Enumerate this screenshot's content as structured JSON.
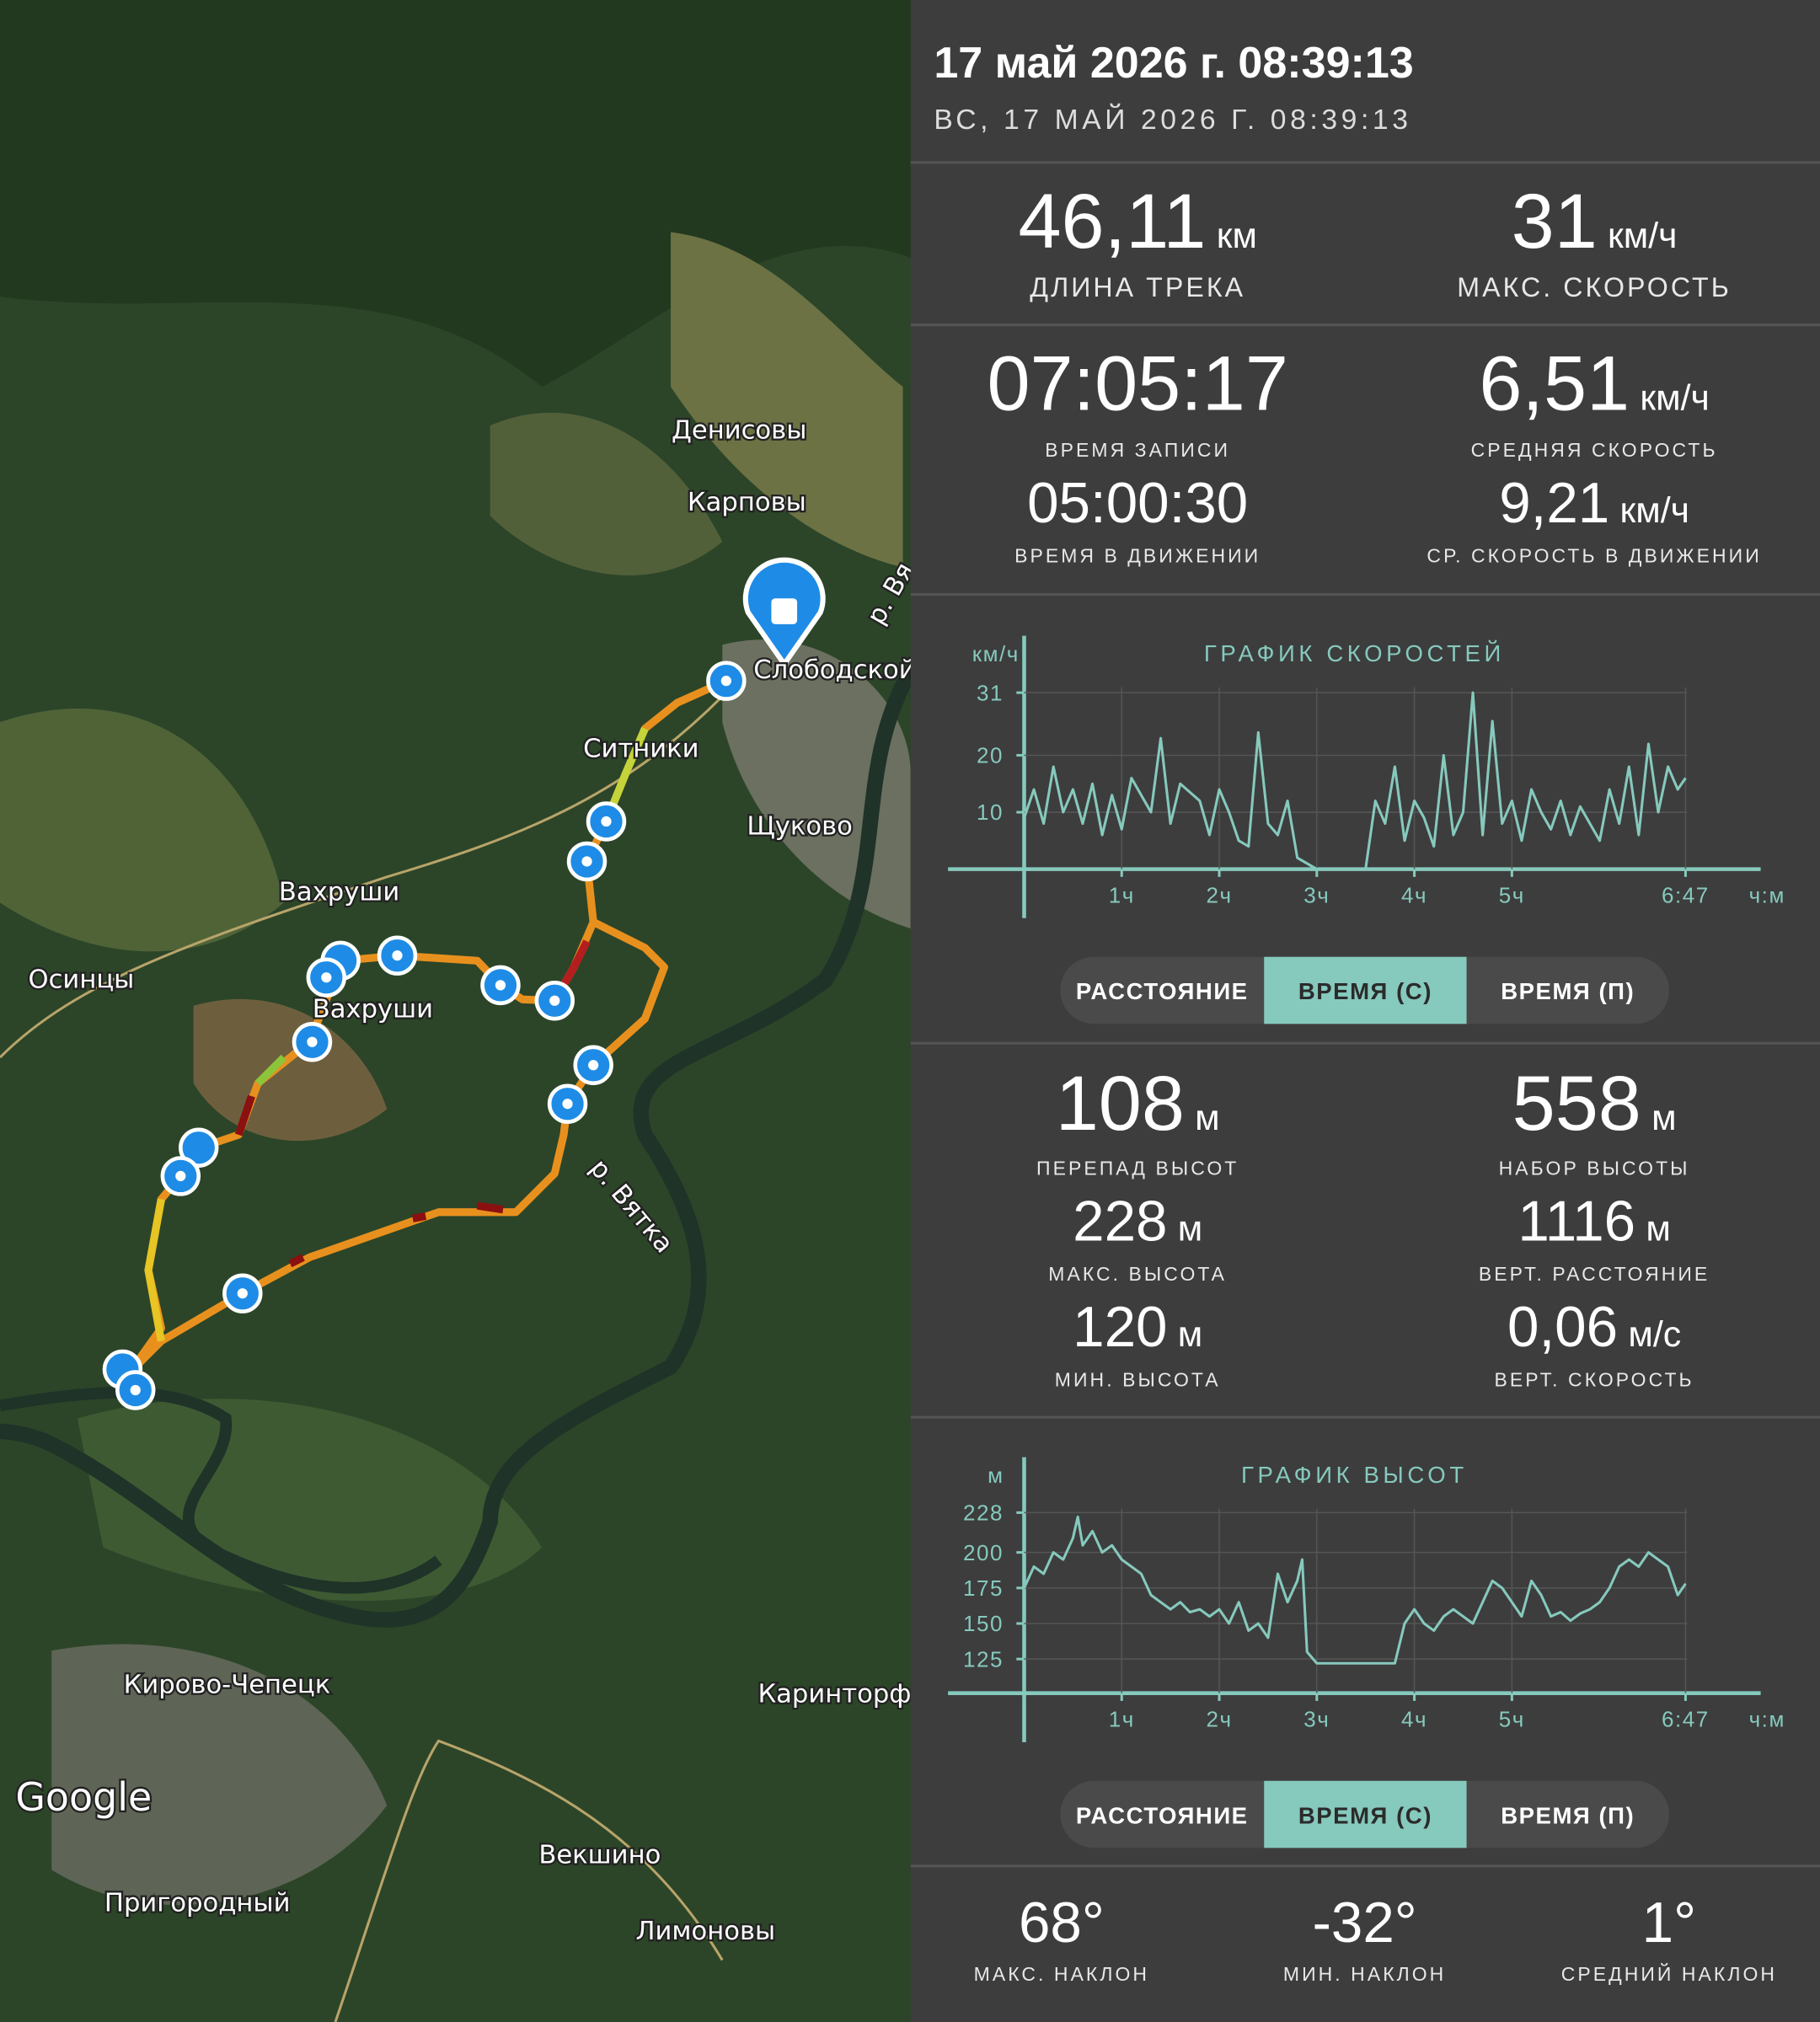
{
  "map": {
    "labels": [
      "Денисовы",
      "Карповы",
      "Слободской",
      "Ситники",
      "Щуково",
      "Вахруши",
      "Осинцы",
      "Вахруши",
      "р. Вятка",
      "р. Вя",
      "Кирово-Чепецк",
      "Каринторф",
      "Векшино",
      "Пригородный",
      "Лимоновы"
    ],
    "attribution": "Google"
  },
  "header": {
    "title": "17 май 2026 г. 08:39:13",
    "subtitle": "ВС, 17 МАЙ 2026 Г. 08:39:13"
  },
  "track_stats": [
    {
      "value": "46,11",
      "unit": "км",
      "label": "ДЛИНА ТРЕКА"
    },
    {
      "value": "31",
      "unit": "км/ч",
      "label": "МАКС. СКОРОСТЬ"
    },
    {
      "value": "07:05:17",
      "label": "ВРЕМЯ ЗАПИСИ"
    },
    {
      "value": "6,51",
      "unit": "км/ч",
      "label": "СРЕДНЯЯ СКОРОСТЬ"
    },
    {
      "value": "05:00:30",
      "label": "ВРЕМЯ В ДВИЖЕНИИ"
    },
    {
      "value": "9,21",
      "unit": "км/ч",
      "label": "СР. СКОРОСТЬ В ДВИЖЕНИИ"
    }
  ],
  "speed_chart": {
    "title": "ГРАФИК СКОРОСТЕЙ",
    "y_unit": "км/ч",
    "x_unit": "ч:м",
    "xlim": [
      0,
      7.55
    ],
    "ylim": [
      0,
      41
    ],
    "yticks": [
      10,
      20,
      31
    ],
    "xticks": [
      {
        "value": 1,
        "label": "1ч"
      },
      {
        "value": 2,
        "label": "2ч"
      },
      {
        "value": 3,
        "label": "3ч"
      },
      {
        "value": 4,
        "label": "4ч"
      },
      {
        "value": 5,
        "label": "5ч"
      },
      {
        "value": 6.78,
        "label": "6:47"
      }
    ],
    "series": {
      "color": "#86c9bd",
      "x": [
        0,
        0.1,
        0.2,
        0.3,
        0.4,
        0.5,
        0.6,
        0.7,
        0.8,
        0.9,
        1.0,
        1.1,
        1.3,
        1.4,
        1.5,
        1.6,
        1.8,
        1.9,
        2.0,
        2.1,
        2.2,
        2.3,
        2.4,
        2.5,
        2.6,
        2.7,
        2.8,
        2.9,
        3.0,
        3.2,
        3.4,
        3.5,
        3.6,
        3.7,
        3.8,
        3.9,
        4.0,
        4.1,
        4.2,
        4.3,
        4.4,
        4.5,
        4.6,
        4.7,
        4.8,
        4.9,
        5.0,
        5.1,
        5.2,
        5.3,
        5.4,
        5.5,
        5.6,
        5.7,
        5.8,
        5.9,
        6.0,
        6.1,
        6.2,
        6.3,
        6.4,
        6.5,
        6.6,
        6.7,
        6.78
      ],
      "values": [
        9,
        14,
        8,
        18,
        10,
        14,
        8,
        15,
        6,
        13,
        7,
        16,
        10,
        23,
        8,
        15,
        12,
        6,
        14,
        10,
        5,
        4,
        24,
        8,
        6,
        12,
        2,
        1,
        0,
        0,
        0,
        0,
        12,
        8,
        18,
        5,
        12,
        9,
        4,
        20,
        6,
        10,
        31,
        6,
        26,
        8,
        12,
        5,
        14,
        10,
        7,
        12,
        6,
        11,
        8,
        5,
        14,
        8,
        18,
        6,
        22,
        10,
        18,
        14,
        16
      ]
    },
    "buttons": [
      "РАССТОЯНИЕ",
      "ВРЕМЯ (С)",
      "ВРЕМЯ (П)"
    ]
  },
  "elevation_stats": [
    {
      "value": "108",
      "unit": "м",
      "label": "ПЕРЕПАД ВЫСОТ"
    },
    {
      "value": "558",
      "unit": "м",
      "label": "НАБОР ВЫСОТЫ"
    },
    {
      "value": "228",
      "unit": "м",
      "label": "МАКС. ВЫСОТА"
    },
    {
      "value": "1116",
      "unit": "м",
      "label": "ВЕРТ. РАССТОЯНИЕ"
    },
    {
      "value": "120",
      "unit": "м",
      "label": "МИН. ВЫСОТА"
    },
    {
      "value": "0,06",
      "unit": "м/с",
      "label": "ВЕРТ. СКОРОСТЬ"
    }
  ],
  "elevation_chart": {
    "title": "ГРАФИК ВЫСОТ",
    "y_unit": "м",
    "x_unit": "ч:м",
    "xlim": [
      0,
      7.55
    ],
    "ylim": [
      101,
      267
    ],
    "yticks": [
      125,
      150,
      175,
      200,
      228
    ],
    "xticks": [
      {
        "value": 1,
        "label": "1ч"
      },
      {
        "value": 2,
        "label": "2ч"
      },
      {
        "value": 3,
        "label": "3ч"
      },
      {
        "value": 4,
        "label": "4ч"
      },
      {
        "value": 5,
        "label": "5ч"
      },
      {
        "value": 6.78,
        "label": "6:47"
      }
    ],
    "series": {
      "color": "#86c9bd",
      "x": [
        0,
        0.1,
        0.2,
        0.3,
        0.4,
        0.5,
        0.55,
        0.6,
        0.7,
        0.8,
        0.9,
        1.0,
        1.1,
        1.2,
        1.3,
        1.4,
        1.5,
        1.6,
        1.7,
        1.8,
        1.9,
        2.0,
        2.1,
        2.2,
        2.3,
        2.4,
        2.5,
        2.6,
        2.7,
        2.8,
        2.85,
        2.9,
        3.0,
        3.5,
        3.8,
        3.9,
        4.0,
        4.1,
        4.2,
        4.3,
        4.4,
        4.5,
        4.6,
        4.7,
        4.8,
        4.9,
        5.0,
        5.1,
        5.2,
        5.3,
        5.4,
        5.5,
        5.6,
        5.7,
        5.8,
        5.9,
        6.0,
        6.1,
        6.2,
        6.3,
        6.4,
        6.5,
        6.6,
        6.7,
        6.78
      ],
      "values": [
        175,
        190,
        185,
        200,
        195,
        210,
        225,
        205,
        215,
        200,
        205,
        195,
        190,
        185,
        170,
        165,
        160,
        165,
        158,
        160,
        155,
        160,
        150,
        165,
        145,
        150,
        140,
        185,
        165,
        180,
        195,
        130,
        122,
        122,
        122,
        150,
        160,
        150,
        145,
        155,
        160,
        155,
        150,
        165,
        180,
        175,
        165,
        155,
        180,
        170,
        155,
        158,
        152,
        157,
        160,
        165,
        175,
        190,
        195,
        190,
        200,
        195,
        190,
        170,
        178
      ]
    },
    "buttons": [
      "РАССТОЯНИЕ",
      "ВРЕМЯ (С)",
      "ВРЕМЯ (П)"
    ]
  },
  "slope_stats": [
    {
      "value": "68°",
      "label": "МАКС. НАКЛОН"
    },
    {
      "value": "-32°",
      "label": "МИН. НАКЛОН"
    },
    {
      "value": "1°",
      "label": "СРЕДНИЙ НАКЛОН"
    }
  ]
}
